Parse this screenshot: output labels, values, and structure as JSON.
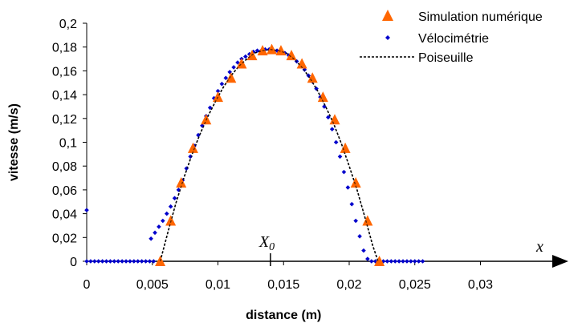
{
  "chart_data": {
    "type": "scatter",
    "xlabel": "distance (m)",
    "ylabel": "vitesse (m/s)",
    "xlim": [
      0,
      0.03
    ],
    "ylim": [
      0,
      0.2
    ],
    "x_ticks": [
      "0",
      "0,005",
      "0,01",
      "0,015",
      "0,02",
      "0,025",
      "0,03"
    ],
    "y_ticks": [
      "0",
      "0,02",
      "0,04",
      "0,06",
      "0,08",
      "0,1",
      "0,12",
      "0,14",
      "0,16",
      "0,18",
      "0,2"
    ],
    "legend_position": "top-right",
    "annotations": {
      "x0_label": "X",
      "x0_sub": "0",
      "x0_value": 0.014,
      "x_axis_letter": "x"
    },
    "series": [
      {
        "name": "Simulation numérique",
        "marker": "triangle",
        "color": "#ff6600",
        "x": [
          0.0056,
          0.0064,
          0.0072,
          0.0081,
          0.0091,
          0.01,
          0.011,
          0.0118,
          0.0126,
          0.0134,
          0.0141,
          0.0148,
          0.0156,
          0.0164,
          0.0172,
          0.018,
          0.0189,
          0.0197,
          0.0205,
          0.0214,
          0.0223
        ],
        "y": [
          0,
          0.034,
          0.066,
          0.095,
          0.119,
          0.138,
          0.154,
          0.166,
          0.173,
          0.177,
          0.178,
          0.177,
          0.173,
          0.166,
          0.154,
          0.138,
          0.119,
          0.095,
          0.066,
          0.034,
          0
        ]
      },
      {
        "name": "Vélocimétrie",
        "marker": "diamond",
        "color": "#0000cc",
        "x": [
          0,
          0.0003,
          0.0006,
          0.0009,
          0.0012,
          0.0015,
          0.0018,
          0.0021,
          0.0024,
          0.0027,
          0.003,
          0.0033,
          0.0036,
          0.0039,
          0.0042,
          0.0045,
          0.0048,
          0.0051,
          0,
          0.0049,
          0.0052,
          0.0055,
          0.0058,
          0.0061,
          0.0064,
          0.0067,
          0.007,
          0.0073,
          0.0076,
          0.0079,
          0.0082,
          0.0085,
          0.0088,
          0.0091,
          0.0094,
          0.0097,
          0.01,
          0.0103,
          0.0106,
          0.0109,
          0.0112,
          0.0115,
          0.0118,
          0.0121,
          0.0124,
          0.0127,
          0.013,
          0.0133,
          0.0136,
          0.0139,
          0.0142,
          0.0145,
          0.0148,
          0.0151,
          0.0154,
          0.0157,
          0.016,
          0.0163,
          0.0166,
          0.0169,
          0.0172,
          0.0175,
          0.0178,
          0.0181,
          0.0184,
          0.0187,
          0.019,
          0.0193,
          0.0196,
          0.0199,
          0.0202,
          0.0205,
          0.0208,
          0.0211,
          0.0214,
          0.0217,
          0.022,
          0.0223,
          0.0226,
          0.0229,
          0.0232,
          0.0235,
          0.0238,
          0.0241,
          0.0244,
          0.0247,
          0.025,
          0.0253,
          0.0256
        ],
        "y": [
          0,
          0,
          0,
          0,
          0,
          0,
          0,
          0,
          0,
          0,
          0,
          0,
          0,
          0,
          0,
          0,
          0,
          0,
          0.043,
          0.019,
          0.024,
          0.029,
          0.034,
          0.04,
          0.046,
          0.053,
          0.06,
          0.068,
          0.078,
          0.088,
          0.097,
          0.106,
          0.114,
          0.122,
          0.129,
          0.137,
          0.143,
          0.149,
          0.154,
          0.159,
          0.163,
          0.167,
          0.17,
          0.172,
          0.174,
          0.176,
          0.177,
          0.177,
          0.178,
          0.178,
          0.177,
          0.177,
          0.176,
          0.175,
          0.173,
          0.171,
          0.168,
          0.165,
          0.161,
          0.156,
          0.151,
          0.145,
          0.138,
          0.13,
          0.121,
          0.111,
          0.1,
          0.088,
          0.075,
          0.062,
          0.048,
          0.034,
          0.021,
          0.009,
          0.002,
          0,
          0,
          0,
          0,
          0,
          0,
          0,
          0,
          0,
          0,
          0,
          0,
          0,
          0
        ]
      },
      {
        "name": "Poiseuille",
        "marker": "dashed-line",
        "color": "#000000",
        "x": [
          0.0056,
          0.0062,
          0.0068,
          0.0074,
          0.008,
          0.0086,
          0.0092,
          0.0098,
          0.0104,
          0.011,
          0.0116,
          0.0122,
          0.0128,
          0.0134,
          0.014,
          0.0146,
          0.0152,
          0.0158,
          0.0164,
          0.017,
          0.0176,
          0.0182,
          0.0188,
          0.0194,
          0.02,
          0.0206,
          0.0212,
          0.0218,
          0.0222
        ],
        "y": [
          0,
          0.025,
          0.049,
          0.07,
          0.089,
          0.106,
          0.121,
          0.134,
          0.146,
          0.156,
          0.164,
          0.17,
          0.175,
          0.177,
          0.178,
          0.177,
          0.175,
          0.17,
          0.163,
          0.154,
          0.143,
          0.13,
          0.116,
          0.099,
          0.08,
          0.06,
          0.037,
          0.013,
          0
        ]
      }
    ]
  }
}
